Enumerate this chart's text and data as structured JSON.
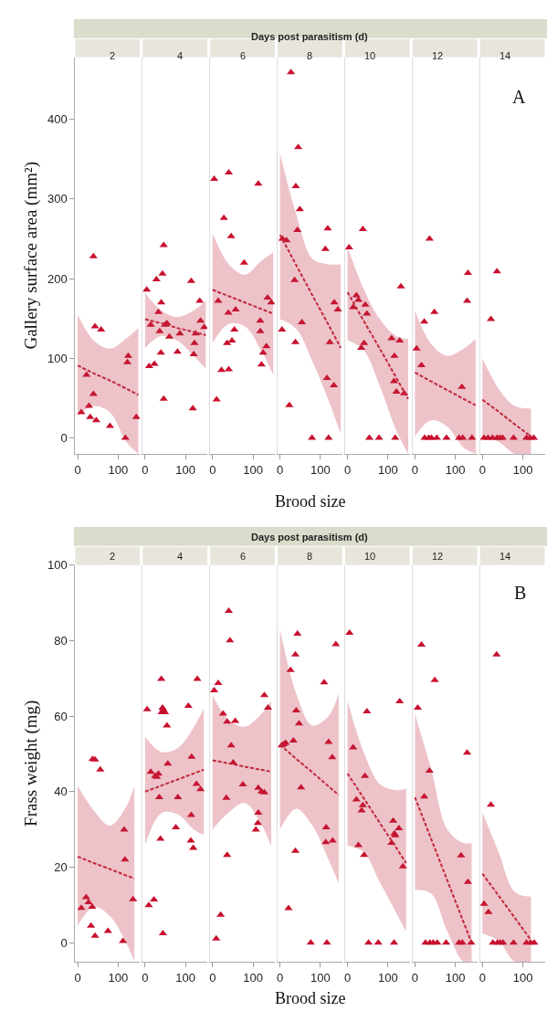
{
  "chart_data": [
    {
      "type": "scatter",
      "title": "2",
      "ylabel": "Gallery surface area (mm²)",
      "annotations": [
        "A"
      ],
      "xlim": [
        -6,
        154
      ],
      "xticks": [
        0,
        100
      ],
      "ylim": [
        -20,
        478
      ],
      "yticks": [
        0,
        100,
        200,
        300,
        400
      ],
      "series": [
        {
          "marker": "triangle",
          "color": "#c8102e",
          "x": [
            9,
            22,
            28,
            31,
            39,
            39,
            43,
            58,
            46,
            80,
            118,
            123,
            125,
            145
          ],
          "values": [
            32,
            79,
            40,
            26,
            228,
            55,
            140,
            136,
            22,
            15,
            0,
            95,
            103,
            26
          ]
        },
        {
          "type": "line",
          "line_style": "dashed",
          "color": "#c0283c",
          "x": [
            0,
            40,
            80,
            120,
            150
          ],
          "values": [
            91,
            81,
            72,
            62,
            54
          ],
          "lower": [
            28,
            40,
            32,
            -5,
            -20
          ],
          "upper": [
            155,
            122,
            112,
            125,
            138
          ]
        }
      ]
    },
    {
      "type": "scatter",
      "title": "4",
      "tick_labels": "x",
      "xlim": [
        -6,
        154
      ],
      "xticks": [
        0,
        100
      ],
      "ylim": [
        -20,
        478
      ],
      "yticks": [
        0,
        100,
        200,
        300,
        400
      ],
      "series": [
        {
          "marker": "triangle",
          "color": "#c8102e",
          "x": [
            4,
            10,
            23,
            14,
            28,
            33,
            36,
            39,
            40,
            43,
            46,
            46,
            49,
            54,
            60,
            80,
            86,
            114,
            118,
            120,
            122,
            125,
            135,
            137,
            146
          ],
          "values": [
            186,
            90,
            93,
            142,
            199,
            158,
            134,
            107,
            170,
            206,
            242,
            49,
            142,
            144,
            127,
            108,
            131,
            197,
            37,
            105,
            119,
            131,
            172,
            147,
            139
          ]
        },
        {
          "type": "line",
          "line_style": "dashed",
          "color": "#c0283c",
          "x": [
            0,
            40,
            80,
            120,
            150
          ],
          "values": [
            149,
            144,
            138,
            133,
            129
          ],
          "lower": [
            113,
            128,
            122,
            103,
            87
          ],
          "upper": [
            182,
            160,
            152,
            160,
            172
          ]
        }
      ]
    },
    {
      "type": "scatter",
      "title": "6",
      "tick_labels": "x",
      "xlim": [
        -6,
        154
      ],
      "xticks": [
        0,
        100
      ],
      "ylim": [
        -20,
        478
      ],
      "yticks": [
        0,
        100,
        200,
        300,
        400
      ],
      "series": [
        {
          "marker": "triangle",
          "color": "#c8102e",
          "x": [
            4,
            10,
            14,
            28,
            22,
            40,
            40,
            39,
            46,
            36,
            48,
            54,
            57,
            78,
            113,
            118,
            118,
            121,
            125,
            133,
            136,
            145
          ],
          "values": [
            325,
            48,
            172,
            276,
            85,
            333,
            86,
            157,
            253,
            119,
            122,
            136,
            161,
            220,
            319,
            147,
            134,
            92,
            107,
            115,
            176,
            170
          ]
        },
        {
          "type": "line",
          "line_style": "dashed",
          "color": "#c0283c",
          "x": [
            0,
            40,
            80,
            120,
            150
          ],
          "values": [
            186,
            178,
            170,
            162,
            156
          ],
          "lower": [
            119,
            143,
            140,
            110,
            79
          ],
          "upper": [
            257,
            218,
            205,
            222,
            233
          ]
        }
      ]
    },
    {
      "type": "scatter",
      "title": "8",
      "subtitle": "Days post parasitism (d)",
      "xlabel": "Brood size",
      "tick_labels": "x",
      "xlim": [
        -6,
        154
      ],
      "xticks": [
        0,
        100
      ],
      "ylim": [
        -20,
        478
      ],
      "yticks": [
        0,
        100,
        200,
        300,
        400
      ],
      "series": [
        {
          "marker": "triangle",
          "color": "#c8102e",
          "x": [
            27,
            45,
            39,
            49,
            43,
            16,
            6,
            36,
            5,
            38,
            54,
            23,
            79,
            120,
            118,
            112,
            134,
            143,
            123,
            116,
            133
          ],
          "values": [
            459,
            365,
            316,
            287,
            261,
            248,
            250,
            198,
            136,
            120,
            145,
            41,
            0,
            0,
            263,
            237,
            170,
            161,
            120,
            75,
            66
          ]
        },
        {
          "type": "line",
          "line_style": "dashed",
          "color": "#c0283c",
          "x": [
            0,
            40,
            80,
            120,
            150
          ],
          "values": [
            255,
            217,
            179,
            142,
            113
          ],
          "lower": [
            149,
            137,
            96,
            47,
            5
          ],
          "upper": [
            357,
            281,
            225,
            218,
            218
          ]
        }
      ]
    },
    {
      "type": "scatter",
      "title": "10",
      "tick_labels": "x",
      "xlim": [
        -6,
        154
      ],
      "xticks": [
        0,
        100
      ],
      "ylim": [
        -20,
        478
      ],
      "yticks": [
        0,
        100,
        200,
        300,
        400
      ],
      "series": [
        {
          "marker": "triangle",
          "color": "#c8102e",
          "x": [
            4,
            38,
            22,
            14,
            27,
            44,
            48,
            34,
            41,
            54,
            78,
            118,
            132,
            109,
            129,
            116,
            115,
            121,
            140
          ],
          "values": [
            239,
            262,
            179,
            164,
            173,
            167,
            156,
            113,
            119,
            0,
            0,
            0,
            190,
            125,
            122,
            103,
            71,
            58,
            56
          ]
        },
        {
          "type": "line",
          "line_style": "dashed",
          "color": "#c0283c",
          "x": [
            0,
            40,
            80,
            120,
            150
          ],
          "values": [
            183,
            147,
            112,
            76,
            49
          ],
          "lower": [
            123,
            110,
            65,
            10,
            -20
          ],
          "upper": [
            240,
            187,
            149,
            128,
            124
          ]
        }
      ]
    },
    {
      "type": "scatter",
      "title": "12",
      "tick_labels": "x",
      "xlim": [
        -6,
        154
      ],
      "xticks": [
        0,
        100
      ],
      "ylim": [
        -20,
        478
      ],
      "yticks": [
        0,
        100,
        200,
        300,
        400
      ],
      "series": [
        {
          "marker": "triangle",
          "color": "#c8102e",
          "x": [
            4,
            16,
            36,
            48,
            23,
            116,
            131,
            129,
            24,
            34,
            41,
            54,
            78,
            109,
            118,
            141
          ],
          "values": [
            112,
            91,
            250,
            158,
            146,
            64,
            207,
            172,
            0,
            0,
            0,
            0,
            0,
            0,
            0,
            0
          ]
        },
        {
          "type": "line",
          "line_style": "dashed",
          "color": "#c0283c",
          "x": [
            0,
            40,
            80,
            120,
            150
          ],
          "values": [
            82,
            71,
            60,
            49,
            41
          ],
          "lower": [
            2,
            22,
            14,
            -12,
            -20
          ],
          "upper": [
            160,
            118,
            103,
            112,
            124
          ]
        }
      ]
    },
    {
      "type": "scatter",
      "title": "14",
      "tick_labels": "x",
      "xlim": [
        -6,
        154
      ],
      "xticks": [
        0,
        100
      ],
      "ylim": [
        -20,
        478
      ],
      "yticks": [
        0,
        100,
        200,
        300,
        400
      ],
      "series": [
        {
          "marker": "triangle",
          "color": "#c8102e",
          "x": [
            36,
            21,
            4,
            14,
            25,
            36,
            43,
            50,
            77,
            109,
            118,
            127
          ],
          "values": [
            209,
            149,
            0,
            0,
            0,
            0,
            0,
            0,
            0,
            0,
            0,
            0
          ]
        },
        {
          "type": "line",
          "line_style": "dashed",
          "color": "#c0283c",
          "x": [
            0,
            40,
            80,
            120
          ],
          "values": [
            48,
            33,
            17,
            2
          ],
          "lower": [
            2,
            -5,
            -20,
            -20
          ],
          "upper": [
            100,
            62,
            40,
            37
          ]
        }
      ]
    },
    {
      "type": "scatter",
      "title": "2",
      "ylabel": "Frass weight (mg)",
      "annotations": [
        "B"
      ],
      "xlim": [
        -6,
        154
      ],
      "xticks": [
        0,
        100
      ],
      "ylim": [
        -5,
        100
      ],
      "yticks": [
        0,
        20,
        40,
        60,
        80,
        100
      ],
      "series": [
        {
          "marker": "triangle",
          "color": "#c8102e",
          "x": [
            9,
            21,
            27,
            36,
            33,
            43,
            37,
            43,
            56,
            75,
            112,
            115,
            117,
            137
          ],
          "values": [
            9.2,
            12,
            10.7,
            9.5,
            4.5,
            1.8,
            48.6,
            48.5,
            45.8,
            3.1,
            0.4,
            29.9,
            22,
            11.5
          ]
        },
        {
          "type": "line",
          "line_style": "dashed",
          "color": "#c0283c",
          "x": [
            0,
            40,
            80,
            120,
            140
          ],
          "values": [
            22.8,
            21.1,
            19.5,
            17.8,
            17
          ],
          "lower": [
            4.5,
            9.5,
            7,
            0,
            -5
          ],
          "upper": [
            41.5,
            35,
            31,
            36,
            41.5
          ]
        }
      ]
    },
    {
      "type": "scatter",
      "title": "4",
      "tick_labels": "x",
      "xlim": [
        -6,
        154
      ],
      "xticks": [
        0,
        100
      ],
      "ylim": [
        -5,
        100
      ],
      "yticks": [
        0,
        20,
        40,
        60,
        80,
        100
      ],
      "series": [
        {
          "marker": "triangle",
          "color": "#c8102e",
          "x": [
            5,
            9,
            22,
            14,
            25,
            33,
            29,
            35,
            38,
            40,
            41,
            43,
            45,
            44,
            49,
            54,
            56,
            76,
            81,
            107,
            115,
            114,
            113,
            119,
            129,
            127,
            137
          ],
          "values": [
            61.8,
            9.9,
            11.4,
            45.2,
            44.1,
            44.7,
            43.9,
            38.5,
            27.5,
            69.8,
            61,
            62.2,
            61.7,
            2.5,
            61,
            57.5,
            47.4,
            30.5,
            38.5,
            62.7,
            49.2,
            33.8,
            27,
            25.1,
            69.8,
            42,
            40.6
          ]
        },
        {
          "type": "line",
          "line_style": "dashed",
          "color": "#c0283c",
          "x": [
            0,
            40,
            80,
            120,
            145
          ],
          "values": [
            40,
            41.6,
            43.2,
            44.8,
            45.8
          ],
          "lower": [
            26,
            34.3,
            34,
            30,
            28.5
          ],
          "upper": [
            54.5,
            50.5,
            51.5,
            57,
            62
          ]
        }
      ]
    },
    {
      "type": "scatter",
      "title": "6",
      "tick_labels": "x",
      "xlim": [
        -6,
        154
      ],
      "xticks": [
        0,
        100
      ],
      "ylim": [
        -5,
        100
      ],
      "yticks": [
        0,
        20,
        40,
        60,
        80,
        100
      ],
      "series": [
        {
          "marker": "triangle",
          "color": "#c8102e",
          "x": [
            4,
            14,
            20,
            9,
            26,
            36,
            40,
            43,
            34,
            36,
            46,
            51,
            56,
            75,
            113,
            121,
            128,
            113,
            112,
            107,
            128,
            137
          ],
          "values": [
            66.8,
            68.7,
            7.4,
            1.1,
            60.6,
            58.5,
            87.8,
            80,
            38.3,
            23.2,
            52.2,
            47.7,
            58.7,
            41.9,
            41,
            40,
            39.8,
            34.4,
            31.7,
            29.9,
            65.5,
            62.2
          ]
        },
        {
          "type": "line",
          "line_style": "dashed",
          "color": "#c0283c",
          "x": [
            0,
            40,
            80,
            120,
            145
          ],
          "values": [
            48.3,
            47.5,
            46.6,
            45.8,
            45.3
          ],
          "lower": [
            30,
            34.5,
            37,
            31.5,
            25.5
          ],
          "upper": [
            65.5,
            59,
            57.2,
            60.5,
            64
          ]
        }
      ]
    },
    {
      "type": "scatter",
      "title": "8",
      "subtitle": "Days post parasitism (d)",
      "xlabel": "Brood size",
      "tick_labels": "x",
      "xlim": [
        -6,
        154
      ],
      "xticks": [
        0,
        100
      ],
      "ylim": [
        -5,
        100
      ],
      "yticks": [
        0,
        20,
        40,
        60,
        80,
        100
      ],
      "series": [
        {
          "marker": "triangle",
          "color": "#c8102e",
          "x": [
            43,
            38,
            26,
            4,
            9,
            14,
            33,
            40,
            47,
            52,
            38,
            21,
            76,
            116,
            109,
            138,
            120,
            129,
            114,
            113,
            130
          ],
          "values": [
            81.8,
            76.3,
            72.2,
            52.2,
            52.5,
            52.9,
            53.5,
            61.5,
            58,
            41.1,
            24.3,
            9.1,
            0,
            0,
            68.9,
            79,
            53.1,
            49.1,
            30.5,
            26.6,
            27
          ]
        },
        {
          "type": "line",
          "line_style": "dashed",
          "color": "#c0283c",
          "x": [
            0,
            40,
            80,
            120,
            145
          ],
          "values": [
            52.4,
            48.7,
            45.1,
            41.4,
            39.1
          ],
          "lower": [
            30,
            35.5,
            31,
            22,
            15.7
          ],
          "upper": [
            83,
            66,
            57.5,
            60,
            66
          ]
        }
      ]
    },
    {
      "type": "scatter",
      "title": "10",
      "tick_labels": "x",
      "xlim": [
        -6,
        154
      ],
      "xticks": [
        0,
        100
      ],
      "ylim": [
        -5,
        100
      ],
      "yticks": [
        0,
        20,
        40,
        60,
        80,
        100
      ],
      "series": [
        {
          "marker": "triangle",
          "color": "#c8102e",
          "x": [
            5,
            14,
            48,
            43,
            22,
            38,
            35,
            27,
            41,
            129,
            113,
            116,
            118,
            127,
            109,
            137,
            52,
            76,
            115
          ],
          "values": [
            82,
            51.7,
            61.2,
            44.1,
            37.9,
            36.4,
            35,
            25.8,
            23.2,
            63.9,
            32.3,
            28.9,
            28.4,
            30.3,
            26.4,
            20.2,
            0,
            0,
            0
          ]
        },
        {
          "type": "line",
          "line_style": "dashed",
          "color": "#c0283c",
          "x": [
            0,
            40,
            80,
            120,
            145
          ],
          "values": [
            44.8,
            38.3,
            31.7,
            25.2,
            21.1
          ],
          "lower": [
            25.7,
            24,
            16,
            8,
            3
          ],
          "upper": [
            64,
            50.5,
            42,
            40.4,
            40.8
          ]
        }
      ]
    },
    {
      "type": "scatter",
      "title": "12",
      "tick_labels": "x",
      "xlim": [
        -6,
        154
      ],
      "xticks": [
        0,
        100
      ],
      "ylim": [
        -5,
        100
      ],
      "yticks": [
        0,
        20,
        40,
        60,
        80,
        100
      ],
      "series": [
        {
          "marker": "triangle",
          "color": "#c8102e",
          "x": [
            7,
            16,
            49,
            36,
            23,
            114,
            129,
            131,
            26,
            37,
            45,
            55,
            77,
            109,
            117,
            139
          ],
          "values": [
            62.2,
            78.9,
            69.5,
            45.5,
            38.7,
            23.1,
            50.3,
            16.1,
            0,
            0,
            0,
            0,
            0,
            0,
            0,
            0
          ]
        },
        {
          "type": "line",
          "line_style": "dashed",
          "color": "#c0283c",
          "x": [
            0,
            40,
            80,
            120,
            140
          ],
          "values": [
            38.5,
            27.5,
            16.5,
            5.5,
            0
          ],
          "lower": [
            14,
            13,
            3,
            -5,
            -5
          ],
          "upper": [
            60.5,
            46,
            30,
            26.4,
            26.4
          ]
        }
      ]
    },
    {
      "type": "scatter",
      "title": "14",
      "tick_labels": "x",
      "xlim": [
        -6,
        154
      ],
      "xticks": [
        0,
        100
      ],
      "ylim": [
        -5,
        100
      ],
      "yticks": [
        0,
        20,
        40,
        60,
        80,
        100
      ],
      "series": [
        {
          "marker": "triangle",
          "color": "#c8102e",
          "x": [
            35,
            21,
            4,
            15,
            26,
            37,
            44,
            51,
            77,
            109,
            119,
            128
          ],
          "values": [
            76.3,
            36.5,
            10.3,
            8.1,
            0,
            0,
            0,
            0,
            0,
            0,
            0,
            0
          ]
        },
        {
          "type": "line",
          "line_style": "dashed",
          "color": "#c0283c",
          "x": [
            0,
            40,
            80,
            120
          ],
          "values": [
            18.3,
            12.5,
            6.6,
            0.7
          ],
          "lower": [
            2.5,
            0.5,
            -5,
            -5
          ],
          "upper": [
            34.5,
            24,
            13.5,
            12.2
          ]
        }
      ]
    }
  ]
}
